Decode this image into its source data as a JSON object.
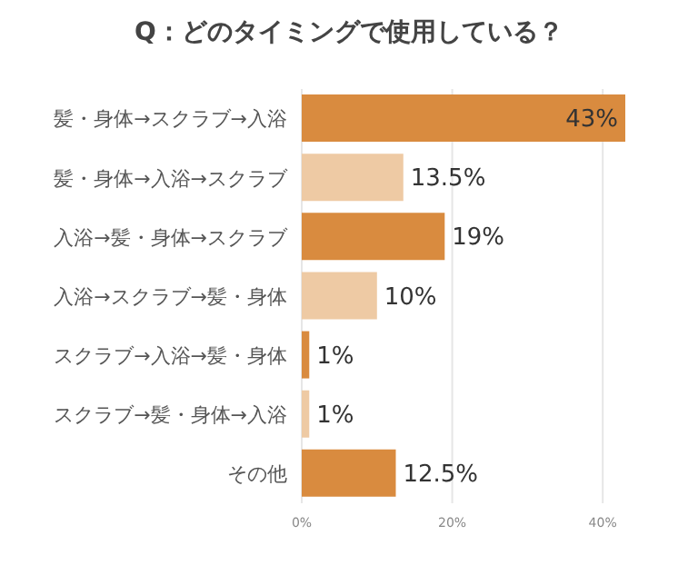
{
  "chart_data": {
    "type": "bar",
    "orientation": "horizontal",
    "title": "Q：どのタイミングで使用している？",
    "categories": [
      "髪・身体→スクラブ→入浴",
      "髪・身体→入浴→スクラブ",
      "入浴→髪・身体→スクラブ",
      "入浴→スクラブ→髪・身体",
      "スクラブ→入浴→髪・身体",
      "スクラブ→髪・身体→入浴",
      "その他"
    ],
    "values": [
      43,
      13.5,
      19,
      10,
      1,
      1,
      12.5
    ],
    "colors": [
      "#d98b3f",
      "#eecaa4",
      "#d98b3f",
      "#eecaa4",
      "#d98b3f",
      "#eecaa4",
      "#d98b3f"
    ],
    "value_labels": [
      "43%",
      "13.5%",
      "19%",
      "10%",
      "1%",
      "1%",
      "12.5%"
    ],
    "xlim": [
      0,
      43
    ],
    "xticks": [
      {
        "value": 0,
        "label": "0%"
      },
      {
        "value": 20,
        "label": "20%"
      },
      {
        "value": 40,
        "label": "40%"
      }
    ],
    "grid": "x"
  }
}
